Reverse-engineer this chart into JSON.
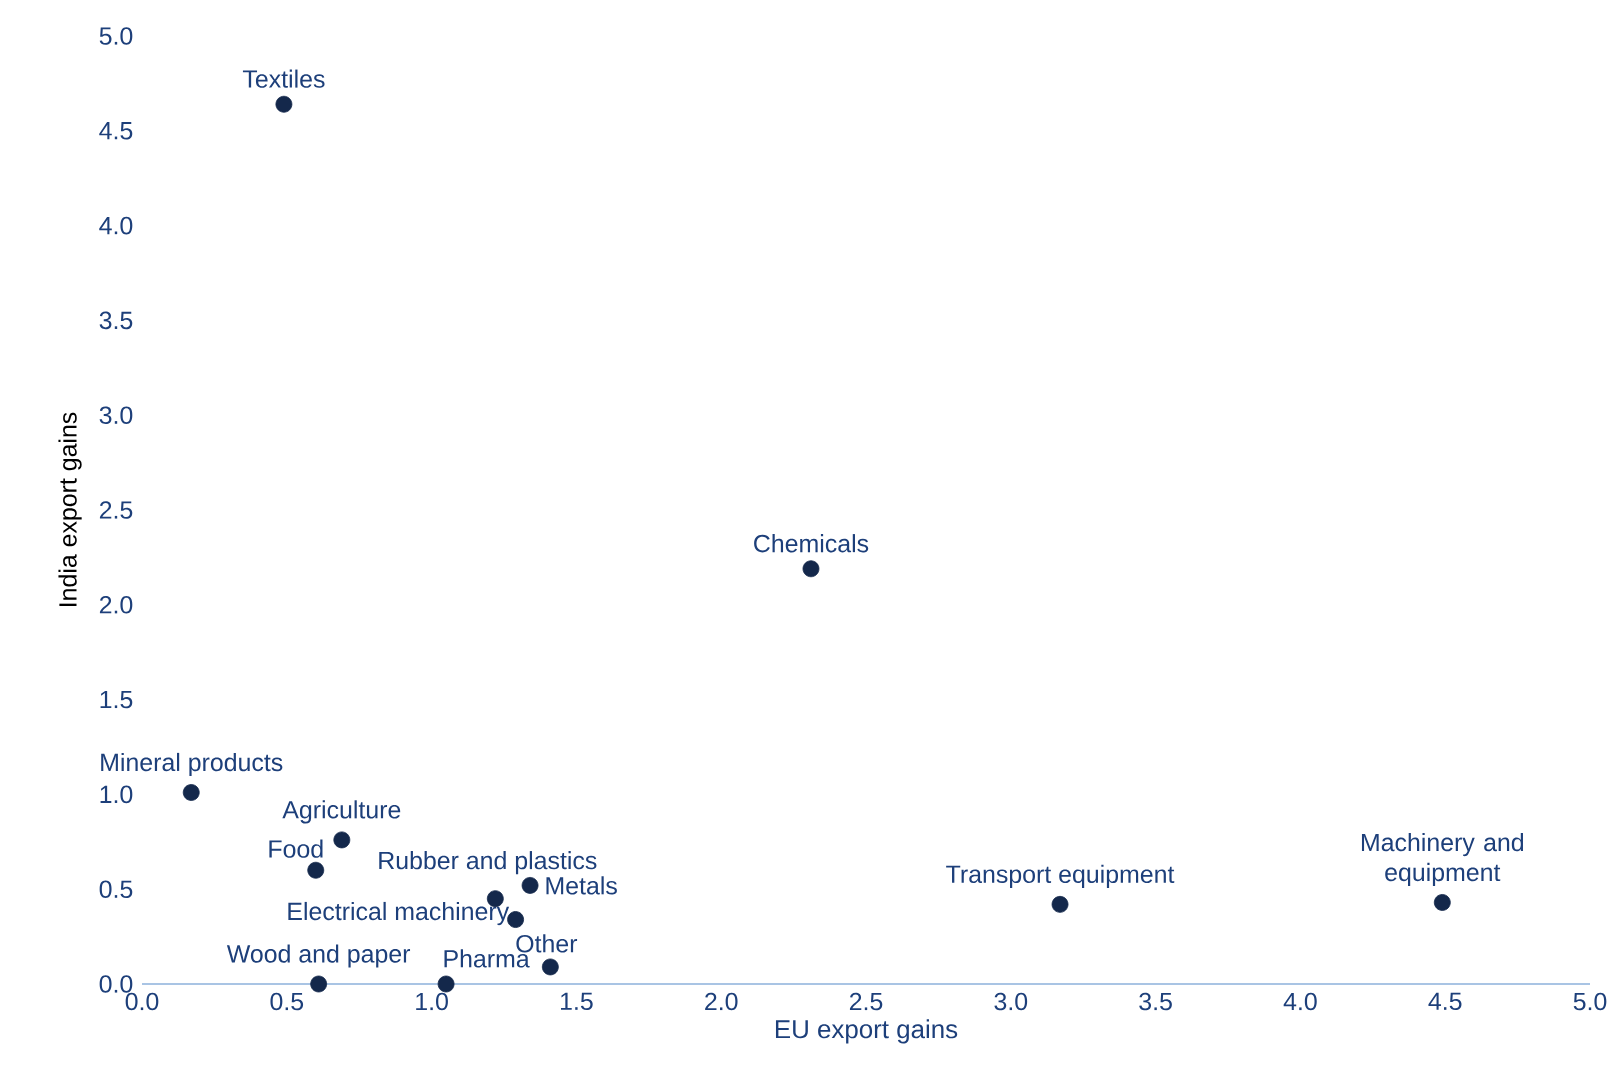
{
  "chart_data": {
    "type": "scatter",
    "xlabel": "EU export gains",
    "ylabel": "India export gains",
    "color": "#14284b",
    "x": [
      0.49,
      2.31,
      0.17,
      0.69,
      0.6,
      1.22,
      1.34,
      1.29,
      1.41,
      0.61,
      1.05,
      3.17,
      4.49
    ],
    "values": [
      4.64,
      2.19,
      1.01,
      0.76,
      0.6,
      0.45,
      0.52,
      0.34,
      0.09,
      0,
      0,
      0.42,
      0.43
    ],
    "annotations": [
      {
        "text": "Textiles",
        "x": 0.49,
        "y": 4.64
      },
      {
        "text": "Chemicals",
        "x": 2.31,
        "y": 2.19
      },
      {
        "text": "Mineral products",
        "x": 0.17,
        "y": 1.01
      },
      {
        "text": "Agriculture",
        "x": 0.69,
        "y": 0.76
      },
      {
        "text": "Food",
        "x": 0.6,
        "y": 0.6
      },
      {
        "text": "Rubber and plastics",
        "x": 1.22,
        "y": 0.45
      },
      {
        "text": "Metals",
        "x": 1.34,
        "y": 0.52
      },
      {
        "text": "Electrical machinery",
        "x": 1.29,
        "y": 0.34
      },
      {
        "text": "Other",
        "x": 1.41,
        "y": 0.09
      },
      {
        "text": "Wood and paper",
        "x": 0.61,
        "y": 0
      },
      {
        "text": "Pharma",
        "x": 1.05,
        "y": 0
      },
      {
        "text": "Transport equipment",
        "x": 3.17,
        "y": 0.42
      },
      {
        "text": "Machinery and equipment",
        "x": 4.49,
        "y": 0.43
      }
    ],
    "xlim": [
      0,
      5
    ],
    "ylim": [
      0,
      5
    ],
    "xticks": [
      {
        "value": 0,
        "label": "0.0"
      },
      {
        "value": 0.5,
        "label": "0.5"
      },
      {
        "value": 1,
        "label": "1.0"
      },
      {
        "value": 1.5,
        "label": "1.5"
      },
      {
        "value": 2,
        "label": "2.0"
      },
      {
        "value": 2.5,
        "label": "2.5"
      },
      {
        "value": 3,
        "label": "3.0"
      },
      {
        "value": 3.5,
        "label": "3.5"
      },
      {
        "value": 4,
        "label": "4.0"
      },
      {
        "value": 4.5,
        "label": "4.5"
      },
      {
        "value": 5,
        "label": "5.0"
      }
    ],
    "yticks": [
      {
        "value": 0,
        "label": "0.0"
      },
      {
        "value": 0.5,
        "label": "0.5"
      },
      {
        "value": 1,
        "label": "1.0"
      },
      {
        "value": 1.5,
        "label": "1.5"
      },
      {
        "value": 2,
        "label": "2.0"
      },
      {
        "value": 2.5,
        "label": "2.5"
      },
      {
        "value": 3,
        "label": "3.0"
      },
      {
        "value": 3.5,
        "label": "3.5"
      },
      {
        "value": 4,
        "label": "4.0"
      },
      {
        "value": 4.5,
        "label": "4.5"
      },
      {
        "value": 5,
        "label": "5.0"
      }
    ],
    "grid": false
  }
}
